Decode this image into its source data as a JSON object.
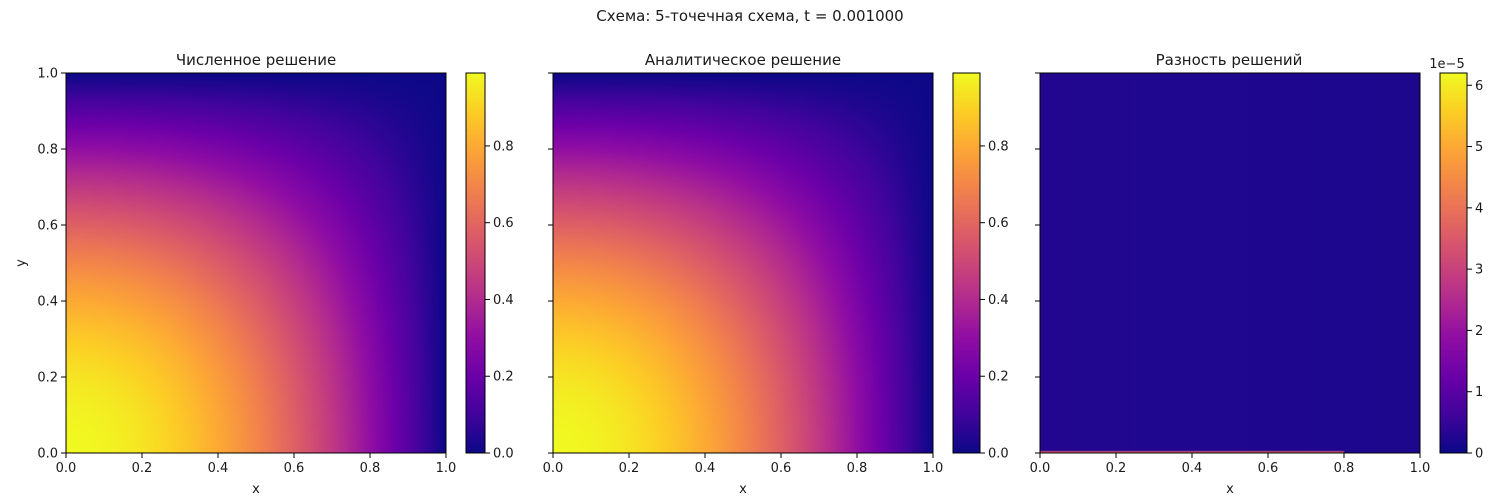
{
  "figure": {
    "suptitle": "Схема: 5-точечная схема, t = 0.001000"
  },
  "chart_data": [
    {
      "type": "heatmap",
      "title": "Численное решение",
      "xlabel": "x",
      "ylabel": "y",
      "xlim": [
        0,
        1
      ],
      "ylim": [
        0,
        1
      ],
      "xticks": [
        "0.0",
        "0.2",
        "0.4",
        "0.6",
        "0.8",
        "1.0"
      ],
      "yticks": [
        "0.0",
        "0.2",
        "0.4",
        "0.6",
        "0.8",
        "1.0"
      ],
      "colormap": "plasma",
      "field": "cos(pi*x/2)*cos(pi*y/2)",
      "zlim": [
        0,
        1
      ],
      "colorbar": {
        "range": [
          0,
          0.99
        ],
        "ticks": [
          "0.0",
          "0.2",
          "0.4",
          "0.6",
          "0.8"
        ],
        "offset": ""
      }
    },
    {
      "type": "heatmap",
      "title": "Аналитическое решение",
      "xlabel": "x",
      "ylabel": "",
      "xlim": [
        0,
        1
      ],
      "ylim": [
        0,
        1
      ],
      "xticks": [
        "0.0",
        "0.2",
        "0.4",
        "0.6",
        "0.8",
        "1.0"
      ],
      "yticks": [
        "",
        "",
        "",
        "",
        "",
        ""
      ],
      "colormap": "plasma",
      "field": "cos(pi*x/2)*cos(pi*y/2)",
      "zlim": [
        0,
        1
      ],
      "colorbar": {
        "range": [
          0,
          0.99
        ],
        "ticks": [
          "0.0",
          "0.2",
          "0.4",
          "0.6",
          "0.8"
        ],
        "offset": ""
      }
    },
    {
      "type": "heatmap",
      "title": "Разность решений",
      "xlabel": "x",
      "ylabel": "",
      "xlim": [
        0,
        1
      ],
      "ylim": [
        0,
        1
      ],
      "xticks": [
        "0.0",
        "0.2",
        "0.4",
        "0.6",
        "0.8",
        "1.0"
      ],
      "yticks": [
        "",
        "",
        "",
        "",
        "",
        ""
      ],
      "colormap": "plasma",
      "field": "near-zero everywhere, maximum ~6.2e-5 along boundary y = 0",
      "zlim": [
        0,
        6.2e-05
      ],
      "colorbar": {
        "range": [
          0,
          6.2
        ],
        "ticks": [
          "0",
          "1",
          "2",
          "3",
          "4",
          "5",
          "6"
        ],
        "offset": "1e−5"
      }
    }
  ]
}
